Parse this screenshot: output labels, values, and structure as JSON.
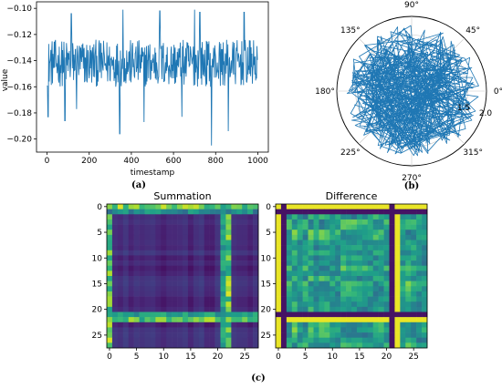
{
  "captions": {
    "a": "(a)",
    "b": "(b)",
    "c": "(c)"
  },
  "chart_data": [
    {
      "type": "line",
      "xlabel": "timestamp",
      "ylabel": "value",
      "xlim": [
        -50,
        1050
      ],
      "ylim": [
        -0.21,
        -0.095
      ],
      "xticks": [
        0,
        200,
        400,
        600,
        800,
        1000
      ],
      "yticks": [
        -0.2,
        -0.18,
        -0.16,
        -0.14,
        -0.12,
        -0.1
      ],
      "ytick_labels": [
        "−0.20",
        "−0.18",
        "−0.16",
        "−0.14",
        "−0.12",
        "−0.10"
      ],
      "n_points": 1000,
      "mean": -0.142,
      "noise_amplitude": 0.018,
      "spikes_high": [
        [
          115,
          -0.104
        ],
        [
          360,
          -0.101
        ],
        [
          535,
          -0.102
        ],
        [
          700,
          -0.101
        ],
        [
          725,
          -0.103
        ],
        [
          935,
          -0.103
        ]
      ],
      "spikes_low": [
        [
          5,
          -0.183
        ],
        [
          85,
          -0.186
        ],
        [
          140,
          -0.177
        ],
        [
          345,
          -0.196
        ],
        [
          460,
          -0.187
        ],
        [
          640,
          -0.183
        ],
        [
          780,
          -0.205
        ],
        [
          860,
          -0.194
        ]
      ],
      "color": "#1f77b4"
    },
    {
      "type": "polar-line",
      "angle_labels": [
        "0°",
        "45°",
        "90°",
        "135°",
        "180°",
        "225°",
        "270°",
        "315°"
      ],
      "radial_tick_labels": [
        "1.5",
        "2.0"
      ],
      "rmax": 2.0,
      "color": "#1f77b4"
    },
    {
      "type": "heatmap",
      "title": "Summation",
      "size": 28,
      "xticks": [
        0,
        5,
        10,
        15,
        20,
        25
      ],
      "yticks": [
        0,
        5,
        10,
        15,
        20,
        25
      ],
      "bright_rows": [
        0,
        22
      ],
      "bright_cols": [
        0,
        22
      ],
      "colormap": "viridis"
    },
    {
      "type": "heatmap",
      "title": "Difference",
      "size": 28,
      "xticks": [
        0,
        5,
        10,
        15,
        20,
        25
      ],
      "yticks": [
        0,
        5,
        10,
        15,
        20,
        25
      ],
      "bright_rows": [
        0,
        22
      ],
      "bright_cols": [
        0,
        22
      ],
      "colormap": "viridis"
    }
  ]
}
